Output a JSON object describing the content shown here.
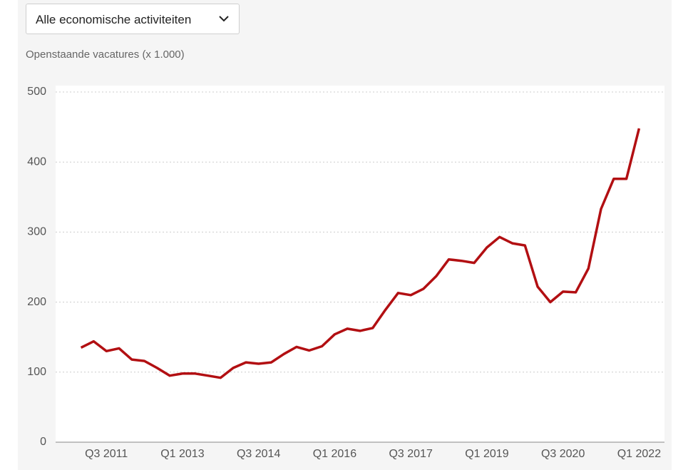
{
  "dropdown": {
    "label": "Alle economische activiteiten"
  },
  "chart_data": {
    "type": "line",
    "ylabel": "Openstaande vacatures (x 1.000)",
    "categories": [
      null,
      null,
      "Q3 2011",
      null,
      null,
      null,
      null,
      null,
      "Q1 2013",
      null,
      null,
      null,
      null,
      null,
      "Q3 2014",
      null,
      null,
      null,
      null,
      null,
      "Q1 2016",
      null,
      null,
      null,
      null,
      null,
      "Q3 2017",
      null,
      null,
      null,
      null,
      null,
      "Q1 2019",
      null,
      null,
      null,
      null,
      null,
      "Q3 2020",
      null,
      null,
      null,
      null,
      null,
      "Q1 2022"
    ],
    "series": [
      {
        "name": "Openstaande vacatures",
        "color": "#b20f12",
        "values": [
          135,
          144,
          130,
          134,
          118,
          116,
          106,
          95,
          98,
          98,
          95,
          92,
          106,
          114,
          112,
          114,
          126,
          136,
          131,
          137,
          154,
          162,
          159,
          163,
          189,
          213,
          210,
          219,
          237,
          261,
          259,
          256,
          278,
          293,
          284,
          281,
          222,
          200,
          215,
          214,
          248,
          333,
          376,
          376,
          448
        ]
      }
    ],
    "ylim": [
      0,
      500
    ],
    "yticks": [
      0,
      100,
      200,
      300,
      400,
      500
    ],
    "grid": true
  }
}
